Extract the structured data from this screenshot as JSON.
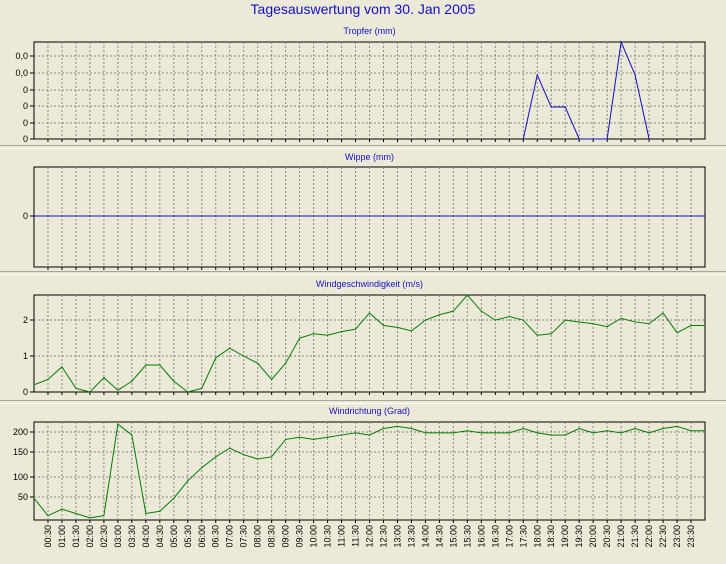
{
  "title": "Tagesauswertung vom 30. Jan 2005",
  "time_labels": [
    "00:30",
    "01:00",
    "01:30",
    "02:00",
    "02:30",
    "03:00",
    "03:30",
    "04:00",
    "04:30",
    "05:00",
    "05:30",
    "06:00",
    "06:30",
    "07:00",
    "07:30",
    "08:00",
    "08:30",
    "09:00",
    "09:30",
    "10:00",
    "10:30",
    "11:00",
    "11:30",
    "12:00",
    "12:30",
    "13:00",
    "13:30",
    "14:00",
    "14:30",
    "15:00",
    "15:30",
    "16:00",
    "16:30",
    "17:00",
    "17:30",
    "18:00",
    "18:30",
    "19:00",
    "19:30",
    "20:00",
    "20:30",
    "21:00",
    "21:30",
    "22:00",
    "22:30",
    "23:00",
    "23:30"
  ],
  "chart_data": [
    {
      "type": "line",
      "title": "Tropfer (mm)",
      "color": "#1010c0",
      "ytick_labels": [
        "0,0",
        "0,0",
        "0",
        "0",
        "0",
        "0"
      ],
      "series": [
        {
          "x": [
            "17:30",
            "18:00",
            "18:30",
            "19:00",
            "19:30",
            "20:00",
            "20:30",
            "21:00",
            "21:30",
            "22:00"
          ],
          "y": [
            0,
            0.066,
            0.033,
            0.033,
            0,
            0,
            0,
            0.1,
            0.066,
            0
          ]
        }
      ],
      "ylim": [
        0,
        0.1
      ],
      "grid": true
    },
    {
      "type": "line",
      "title": "Wippe (mm)",
      "color": "#1010c0",
      "ytick_labels": [
        "0"
      ],
      "series": [
        {
          "x": "all",
          "y": "constant 0"
        }
      ],
      "ylim": [
        -1,
        1
      ],
      "grid": true
    },
    {
      "type": "line",
      "title": "Windgeschwindigkeit (m/s)",
      "color": "#008000",
      "ytick_labels": [
        "0",
        "1",
        "2"
      ],
      "x": [
        "00:00",
        "00:30",
        "01:00",
        "01:30",
        "02:00",
        "02:30",
        "03:00",
        "03:30",
        "04:00",
        "04:30",
        "05:00",
        "05:30",
        "06:00",
        "06:30",
        "07:00",
        "07:30",
        "08:00",
        "08:30",
        "09:00",
        "09:30",
        "10:00",
        "10:30",
        "11:00",
        "11:30",
        "12:00",
        "12:30",
        "13:00",
        "13:30",
        "14:00",
        "14:30",
        "15:00",
        "15:30",
        "16:00",
        "16:30",
        "17:00",
        "17:30",
        "18:00",
        "18:30",
        "19:00",
        "19:30",
        "20:00",
        "20:30",
        "21:00",
        "21:30",
        "22:00",
        "22:30",
        "23:00",
        "23:30"
      ],
      "series": [
        {
          "y": [
            0.2,
            0.35,
            0.7,
            0.1,
            0.0,
            0.4,
            0.05,
            0.3,
            0.75,
            0.75,
            0.3,
            0.0,
            0.1,
            0.95,
            1.22,
            1.0,
            0.8,
            0.35,
            0.8,
            1.5,
            1.62,
            1.58,
            1.68,
            1.75,
            2.2,
            1.85,
            1.8,
            1.7,
            2.0,
            2.15,
            2.25,
            2.7,
            2.25,
            2.0,
            2.1,
            2.0,
            1.58,
            1.62,
            2.0,
            1.95,
            1.9,
            1.82,
            2.05,
            1.95,
            1.9,
            2.2,
            1.65,
            1.85
          ]
        }
      ],
      "ylim": [
        0,
        2.7
      ],
      "grid": true
    },
    {
      "type": "line",
      "title": "Windrichtung (Grad)",
      "color": "#008000",
      "ytick_labels": [
        "50",
        "100",
        "150",
        "200"
      ],
      "x": [
        "00:00",
        "00:30",
        "01:00",
        "01:30",
        "02:00",
        "02:30",
        "03:00",
        "03:30",
        "04:00",
        "04:30",
        "05:00",
        "05:30",
        "06:00",
        "06:30",
        "07:00",
        "07:30",
        "08:00",
        "08:30",
        "09:00",
        "09:30",
        "10:00",
        "10:30",
        "11:00",
        "11:30",
        "12:00",
        "12:30",
        "13:00",
        "13:30",
        "14:00",
        "14:30",
        "15:00",
        "15:30",
        "16:00",
        "16:30",
        "17:00",
        "17:30",
        "18:00",
        "18:30",
        "19:00",
        "19:30",
        "20:00",
        "20:30",
        "21:00",
        "21:30",
        "22:00",
        "22:30",
        "23:00",
        "23:30"
      ],
      "series": [
        {
          "y": [
            50,
            10,
            25,
            15,
            5,
            10,
            220,
            195,
            15,
            20,
            50,
            90,
            120,
            145,
            165,
            150,
            140,
            145,
            185,
            190,
            185,
            190,
            195,
            200,
            195,
            210,
            215,
            210,
            200,
            200,
            200,
            205,
            200,
            200,
            200,
            210,
            200,
            195,
            195,
            210,
            200,
            205,
            200,
            210,
            200,
            210,
            215,
            205
          ]
        }
      ],
      "ylim": [
        0,
        225
      ],
      "grid": true
    }
  ]
}
